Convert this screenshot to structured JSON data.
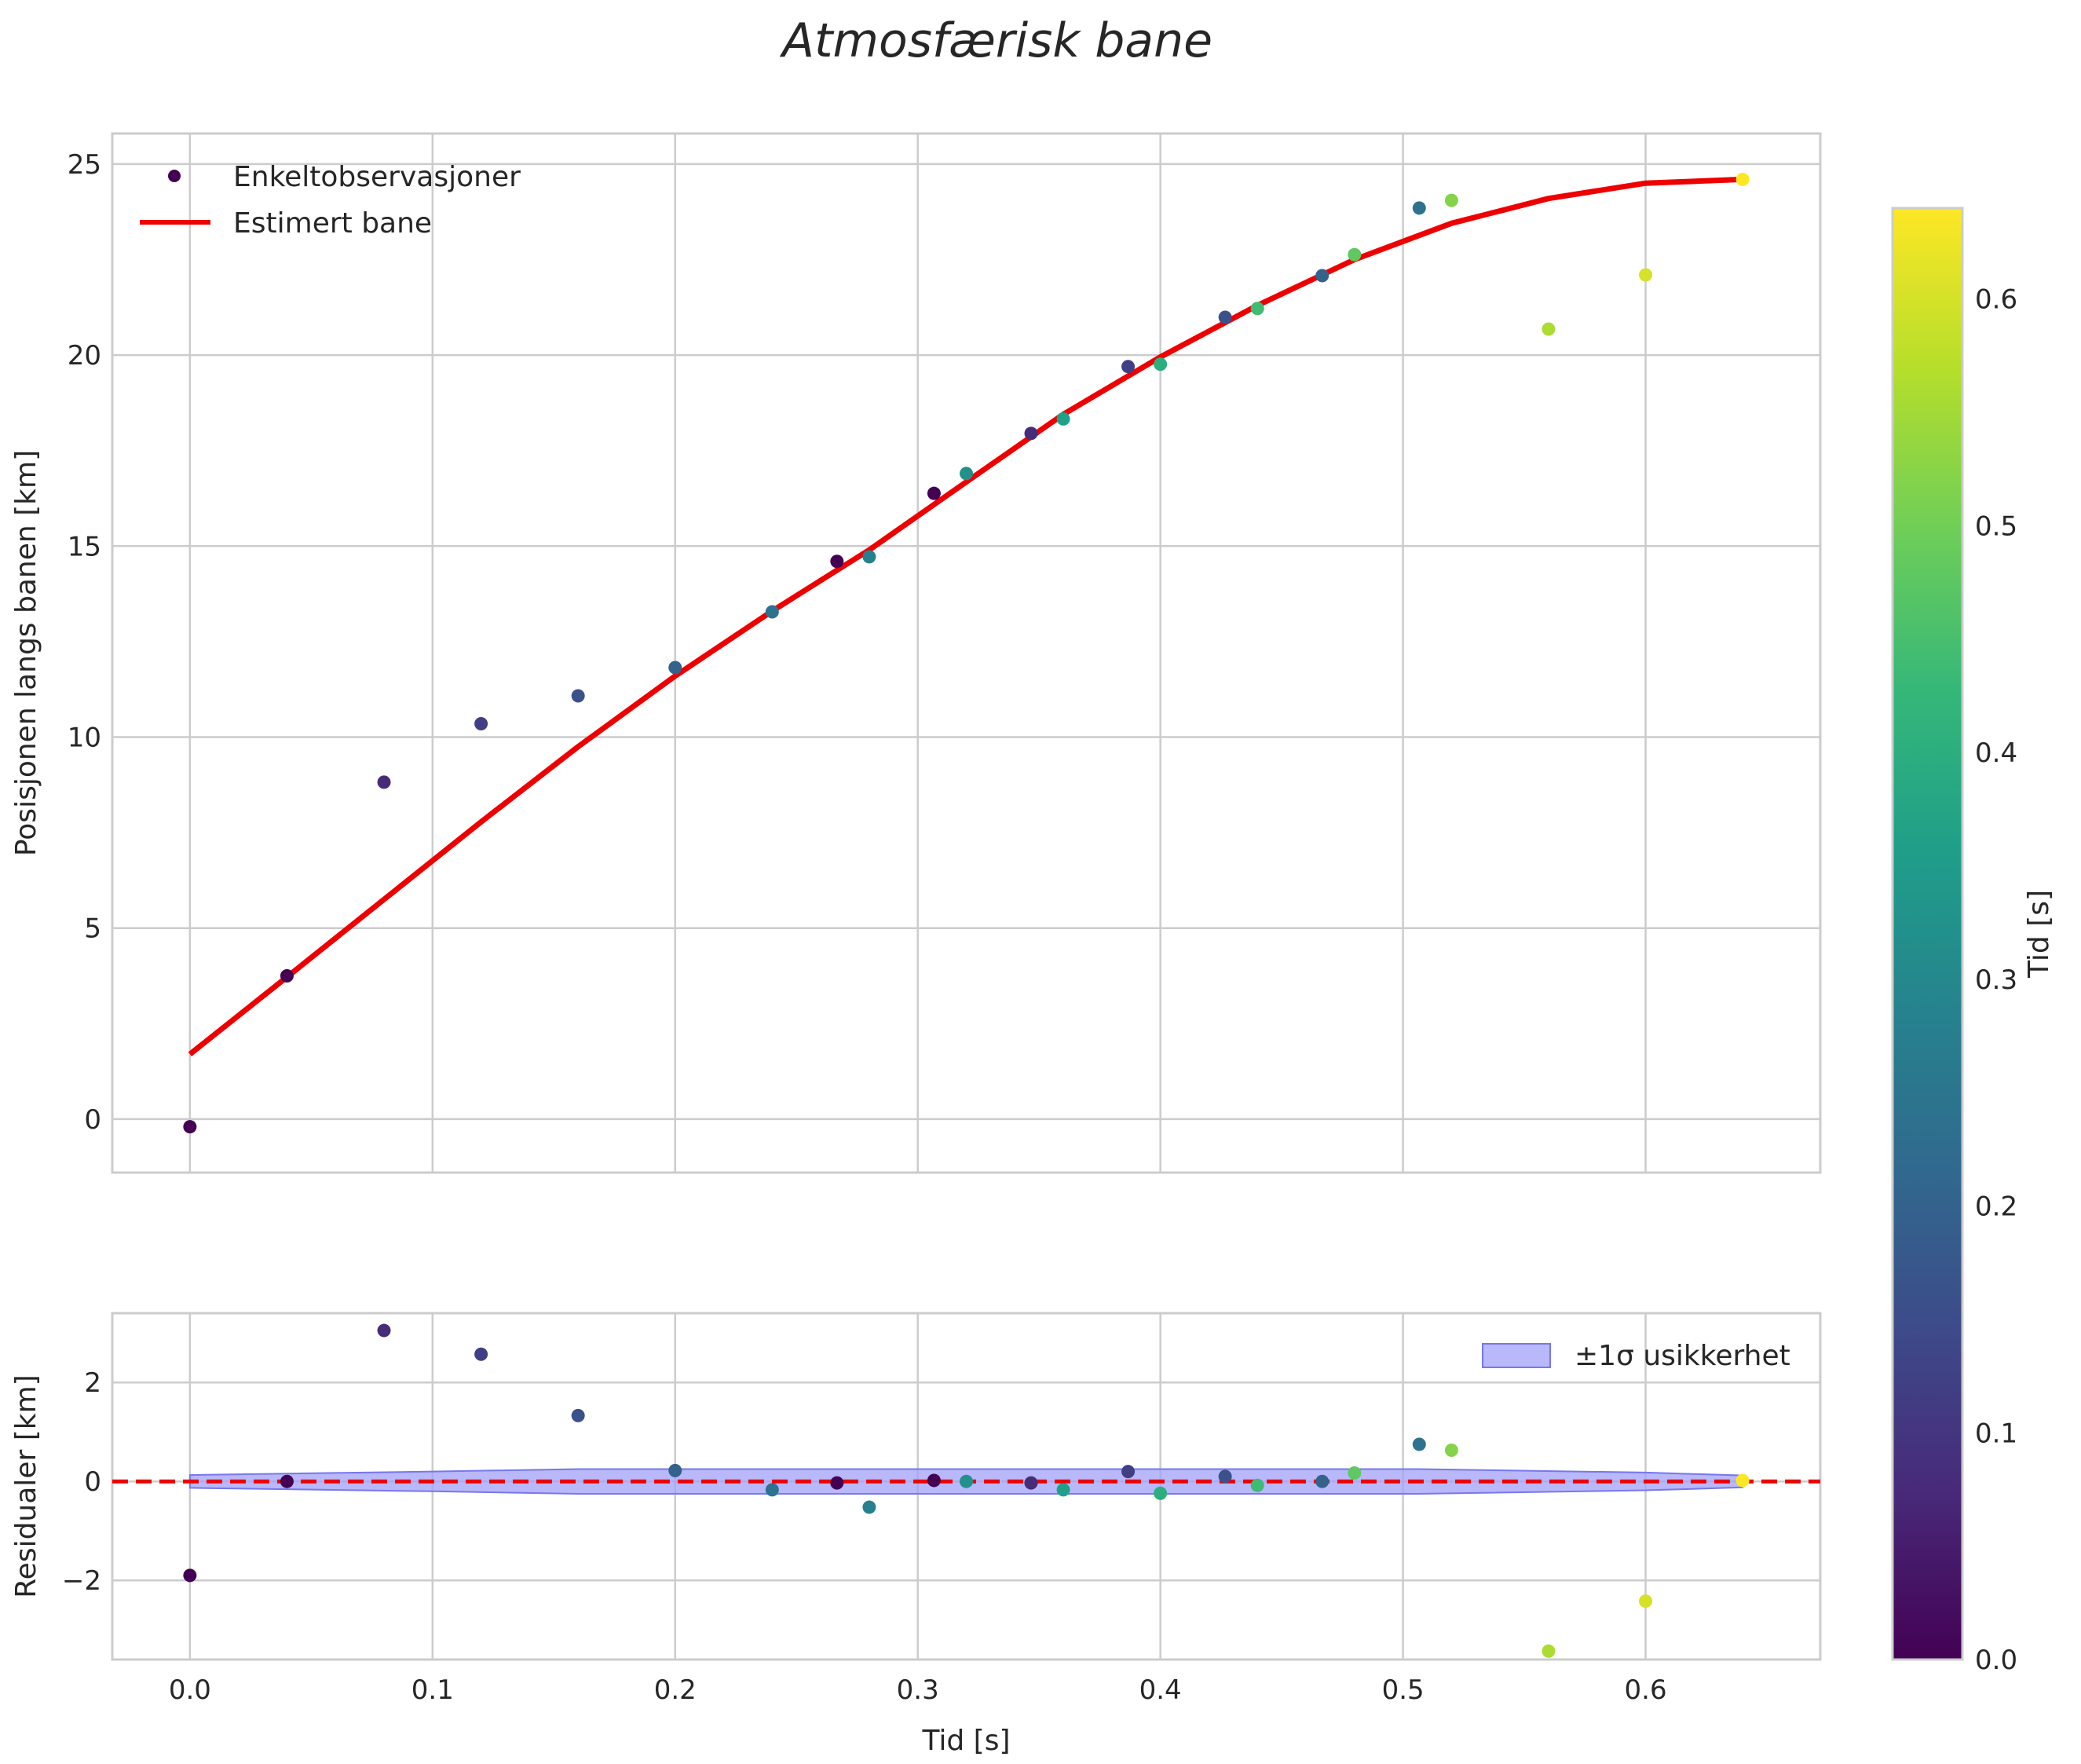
{
  "chart_data": {
    "title": "Atmosfærisk bane",
    "colormap": [
      "#440154",
      "#482878",
      "#3e4989",
      "#31688e",
      "#26828e",
      "#1f9e89",
      "#35b779",
      "#6ece58",
      "#b5de2b",
      "#fde725"
    ],
    "colors": {
      "fit_line": "#ee0000",
      "zero_line": "#ee0000",
      "band_fill": "#a0a0f8",
      "band_edge": "#7777ee",
      "grid": "#cccccc",
      "spine": "#cccccc"
    },
    "top_panel": {
      "type": "scatter",
      "ylabel": "Posisjonen langs banen [km]",
      "xlim": [
        -0.032,
        0.672
      ],
      "ylim": [
        -1.4,
        25.8
      ],
      "xticks": [
        0.0,
        0.1,
        0.2,
        0.3,
        0.4,
        0.5,
        0.6
      ],
      "yticks": [
        0,
        5,
        10,
        15,
        20,
        25
      ],
      "grid": true,
      "legend": {
        "placement": "top-left",
        "entries": [
          {
            "label": "Enkeltobservasjoner",
            "kind": "marker",
            "color": "#440154"
          },
          {
            "label": "Estimert bane",
            "kind": "line",
            "color": "#ee0000"
          }
        ]
      },
      "observations": [
        {
          "x": 0.0,
          "y": -0.2,
          "c": 0.0
        },
        {
          "x": 0.04,
          "y": 3.75,
          "c": 0.0
        },
        {
          "x": 0.08,
          "y": 8.82,
          "c": 0.08
        },
        {
          "x": 0.12,
          "y": 10.35,
          "c": 0.12
        },
        {
          "x": 0.16,
          "y": 11.08,
          "c": 0.16
        },
        {
          "x": 0.2,
          "y": 11.82,
          "c": 0.2
        },
        {
          "x": 0.24,
          "y": 13.28,
          "c": 0.24
        },
        {
          "x": 0.2667,
          "y": 14.6,
          "c": 0.0
        },
        {
          "x": 0.28,
          "y": 14.72,
          "c": 0.28
        },
        {
          "x": 0.3067,
          "y": 16.38,
          "c": 0.0
        },
        {
          "x": 0.32,
          "y": 16.9,
          "c": 0.32
        },
        {
          "x": 0.3467,
          "y": 17.95,
          "c": 0.08
        },
        {
          "x": 0.36,
          "y": 18.33,
          "c": 0.36
        },
        {
          "x": 0.3867,
          "y": 19.7,
          "c": 0.12
        },
        {
          "x": 0.4,
          "y": 19.76,
          "c": 0.4
        },
        {
          "x": 0.4267,
          "y": 20.99,
          "c": 0.16
        },
        {
          "x": 0.44,
          "y": 21.22,
          "c": 0.44
        },
        {
          "x": 0.4667,
          "y": 22.08,
          "c": 0.2
        },
        {
          "x": 0.48,
          "y": 22.63,
          "c": 0.48
        },
        {
          "x": 0.5067,
          "y": 23.85,
          "c": 0.24
        },
        {
          "x": 0.52,
          "y": 24.05,
          "c": 0.52
        },
        {
          "x": 0.56,
          "y": 20.68,
          "c": 0.56
        },
        {
          "x": 0.6,
          "y": 22.1,
          "c": 0.6
        },
        {
          "x": 0.64,
          "y": 24.6,
          "c": 0.64
        }
      ],
      "fit_line": {
        "x": [
          0.0,
          0.04,
          0.08,
          0.12,
          0.16,
          0.2,
          0.24,
          0.28,
          0.32,
          0.36,
          0.4,
          0.44,
          0.48,
          0.52,
          0.56,
          0.6,
          0.64
        ],
        "y": [
          1.7,
          3.72,
          5.75,
          7.78,
          9.75,
          11.6,
          13.3,
          14.9,
          16.68,
          18.45,
          19.95,
          21.3,
          22.5,
          23.45,
          24.1,
          24.5,
          24.6
        ]
      }
    },
    "bottom_panel": {
      "type": "scatter",
      "xlabel": "Tid [s]",
      "ylabel": "Residualer [km]",
      "xlim": [
        -0.032,
        0.672
      ],
      "ylim": [
        -3.6,
        3.4
      ],
      "xticks": [
        0.0,
        0.1,
        0.2,
        0.3,
        0.4,
        0.5,
        0.6
      ],
      "yticks": [
        -2,
        0,
        2
      ],
      "grid": true,
      "legend": {
        "placement": "top-right",
        "entries": [
          {
            "label": "±1σ usikkerhet",
            "kind": "patch",
            "color": "#a0a0f8"
          }
        ]
      },
      "residuals": [
        {
          "x": 0.0,
          "y": -1.9,
          "c": 0.0
        },
        {
          "x": 0.04,
          "y": 0.0,
          "c": 0.0
        },
        {
          "x": 0.08,
          "y": 3.05,
          "c": 0.08
        },
        {
          "x": 0.12,
          "y": 2.57,
          "c": 0.12
        },
        {
          "x": 0.16,
          "y": 1.33,
          "c": 0.16
        },
        {
          "x": 0.2,
          "y": 0.22,
          "c": 0.2
        },
        {
          "x": 0.24,
          "y": -0.17,
          "c": 0.24
        },
        {
          "x": 0.2667,
          "y": -0.03,
          "c": 0.0
        },
        {
          "x": 0.28,
          "y": -0.52,
          "c": 0.28
        },
        {
          "x": 0.3067,
          "y": 0.02,
          "c": 0.0
        },
        {
          "x": 0.32,
          "y": 0.0,
          "c": 0.32
        },
        {
          "x": 0.3467,
          "y": -0.03,
          "c": 0.08
        },
        {
          "x": 0.36,
          "y": -0.17,
          "c": 0.36
        },
        {
          "x": 0.3867,
          "y": 0.2,
          "c": 0.12
        },
        {
          "x": 0.4,
          "y": -0.24,
          "c": 0.4
        },
        {
          "x": 0.4267,
          "y": 0.1,
          "c": 0.16
        },
        {
          "x": 0.44,
          "y": -0.08,
          "c": 0.44
        },
        {
          "x": 0.4667,
          "y": 0.0,
          "c": 0.2
        },
        {
          "x": 0.48,
          "y": 0.17,
          "c": 0.48
        },
        {
          "x": 0.5067,
          "y": 0.75,
          "c": 0.24
        },
        {
          "x": 0.52,
          "y": 0.63,
          "c": 0.52
        },
        {
          "x": 0.56,
          "y": -3.43,
          "c": 0.56
        },
        {
          "x": 0.6,
          "y": -2.42,
          "c": 0.6
        },
        {
          "x": 0.64,
          "y": 0.02,
          "c": 0.64
        }
      ],
      "uncertainty_band": {
        "x": [
          0.0,
          0.1,
          0.16,
          0.3,
          0.4,
          0.5067,
          0.6,
          0.64
        ],
        "sigma": [
          0.13,
          0.2,
          0.25,
          0.25,
          0.25,
          0.25,
          0.18,
          0.12
        ]
      },
      "zero_line": 0
    },
    "colorbar": {
      "label": "Tid [s]",
      "range": [
        0.0,
        0.64
      ],
      "ticks": [
        0.0,
        0.1,
        0.2,
        0.3,
        0.4,
        0.5,
        0.6
      ]
    }
  }
}
